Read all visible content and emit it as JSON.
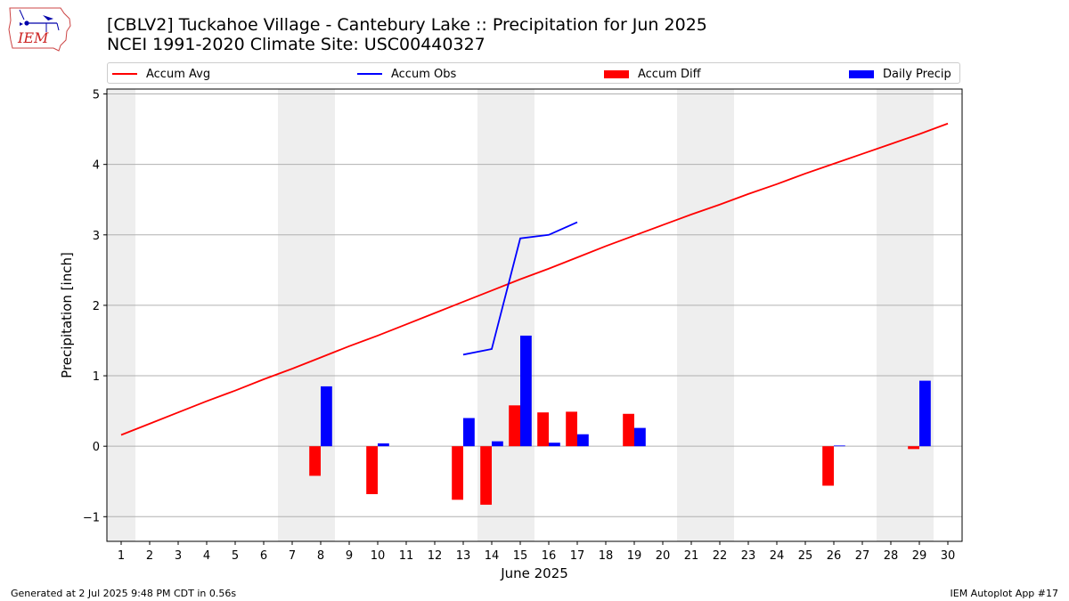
{
  "header": {
    "title_line1": "[CBLV2] Tuckahoe Village - Cantebury Lake :: Precipitation for Jun 2025",
    "title_line2": "NCEI 1991-2020 Climate Site: USC00440327",
    "logo_text": "IEM"
  },
  "footer": {
    "left": "Generated at 2 Jul 2025 9:48 PM CDT in 0.56s",
    "right": "IEM Autoplot App #17"
  },
  "colors": {
    "avg": "#ff0000",
    "obs": "#0000ff",
    "diff": "#ff0000",
    "daily": "#0000ff",
    "weekend_shade": "#eeeeee",
    "grid": "#b0b0b0"
  },
  "chart_data": {
    "type": "bar",
    "title": "[CBLV2] Tuckahoe Village - Cantebury Lake :: Precipitation for Jun 2025",
    "xlabel": "June 2025",
    "ylabel": "Precipitation [inch]",
    "xlim": [
      0.5,
      30.5
    ],
    "ylim": [
      -1.35,
      5.07
    ],
    "yticks": [
      -1,
      0,
      1,
      2,
      3,
      4,
      5
    ],
    "ytick_labels": [
      "−1",
      "0",
      "1",
      "2",
      "3",
      "4",
      "5"
    ],
    "days": [
      1,
      2,
      3,
      4,
      5,
      6,
      7,
      8,
      9,
      10,
      11,
      12,
      13,
      14,
      15,
      16,
      17,
      18,
      19,
      20,
      21,
      22,
      23,
      24,
      25,
      26,
      27,
      28,
      29,
      30
    ],
    "grid": "horizontal",
    "shaded_days": [
      1,
      7,
      8,
      14,
      15,
      21,
      22,
      28,
      29
    ],
    "legend_position": "top",
    "series": [
      {
        "name": "Accum Avg",
        "kind": "line",
        "values": [
          0.16,
          0.32,
          0.48,
          0.64,
          0.79,
          0.95,
          1.1,
          1.26,
          1.42,
          1.57,
          1.73,
          1.89,
          2.05,
          2.21,
          2.37,
          2.52,
          2.68,
          2.84,
          2.99,
          3.14,
          3.29,
          3.43,
          3.58,
          3.72,
          3.87,
          4.01,
          4.15,
          4.29,
          4.43,
          4.58
        ]
      },
      {
        "name": "Accum Obs",
        "kind": "line",
        "x": [
          13,
          14,
          15,
          16,
          17
        ],
        "values": [
          1.3,
          1.38,
          2.95,
          3.0,
          3.18
        ]
      },
      {
        "name": "Accum Diff",
        "kind": "bar",
        "x": [
          8,
          10,
          13,
          14,
          15,
          16,
          17,
          19,
          26,
          29
        ],
        "values": [
          -0.42,
          -0.68,
          -0.76,
          -0.83,
          0.58,
          0.48,
          0.49,
          0.46,
          -0.56,
          -0.04
        ]
      },
      {
        "name": "Daily Precip",
        "kind": "bar",
        "x": [
          8,
          10,
          13,
          14,
          15,
          16,
          17,
          19,
          26,
          29
        ],
        "values": [
          0.85,
          0.04,
          0.4,
          0.07,
          1.57,
          0.05,
          0.17,
          0.26,
          0.01,
          0.93
        ]
      }
    ]
  }
}
